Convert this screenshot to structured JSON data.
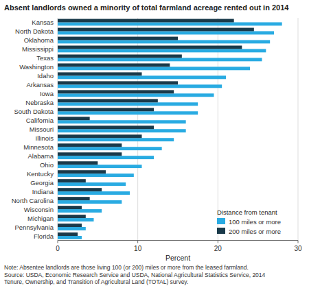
{
  "chart_data": {
    "type": "bar",
    "orientation": "horizontal",
    "title": "Absent landlords owned a minority of total farmland acreage rented out in 2014",
    "categories": [
      "Kansas",
      "North Dakota",
      "Oklahoma",
      "Mississippi",
      "Texas",
      "Washington",
      "Idaho",
      "Arkansas",
      "Iowa",
      "Nebraska",
      "South Dakota",
      "California",
      "Missouri",
      "Illinois",
      "Minnesota",
      "Alabama",
      "Ohio",
      "Kentucky",
      "Georgia",
      "Indiana",
      "North Carolina",
      "Wisconsin",
      "Michigan",
      "Pennsylvania",
      "Florida"
    ],
    "series": [
      {
        "name": "100 miles or more",
        "color": "#29abe2",
        "values": [
          28.0,
          27.0,
          26.5,
          26.0,
          25.5,
          24.0,
          21.0,
          20.5,
          19.5,
          17.5,
          17.5,
          16.0,
          16.0,
          14.5,
          13.0,
          12.0,
          10.5,
          9.5,
          8.5,
          9.0,
          8.0,
          5.5,
          4.5,
          3.5,
          3.0
        ]
      },
      {
        "name": "200 miles or more",
        "color": "#1a3a4a",
        "values": [
          22.0,
          24.5,
          15.0,
          23.0,
          15.5,
          14.0,
          10.5,
          15.0,
          14.5,
          12.5,
          12.0,
          4.0,
          12.0,
          10.5,
          8.0,
          8.0,
          5.0,
          6.0,
          3.5,
          5.5,
          4.0,
          3.0,
          3.5,
          3.0,
          2.5
        ]
      }
    ],
    "xlabel": "Percent",
    "xlim": [
      0,
      30
    ],
    "xticks": [
      0,
      10,
      20,
      30
    ],
    "grid": true,
    "legend": "lower right",
    "legend_title": "Distance from tenant",
    "annotations": [
      "Note: Absentee landlords are those living 100 (or 200) miles or more from the leased farmland.",
      "Source: USDA, Economic Research Service and USDA, National Agricultural Statistics Service, 2014",
      "Tenure, Ownership, and Transition of Agricultural Land (TOTAL) survey."
    ]
  }
}
